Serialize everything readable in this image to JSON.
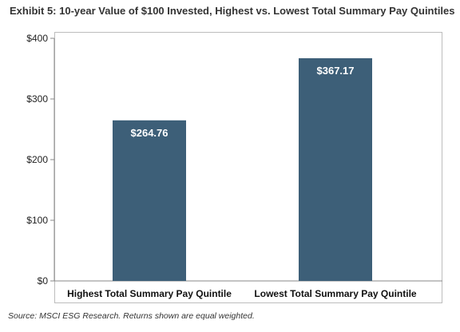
{
  "chart_data": {
    "type": "bar",
    "title": "Exhibit 5: 10-year Value of $100 Invested, Highest vs. Lowest Total Summary Pay Quintiles",
    "categories": [
      "Highest Total Summary Pay Quintile",
      "Lowest Total Summary Pay Quintile"
    ],
    "values": [
      264.76,
      367.17
    ],
    "data_labels": [
      "$264.76",
      "$367.17"
    ],
    "y_ticks": [
      0,
      100,
      200,
      300,
      400
    ],
    "y_tick_labels": [
      "$0",
      "$100",
      "$200",
      "$300",
      "$400"
    ],
    "ylim": [
      0,
      400
    ],
    "grid": false,
    "legend": "none",
    "bar_color": "#3d5f78",
    "source_note": "Source: MSCI ESG Research. Returns shown are equal weighted."
  }
}
